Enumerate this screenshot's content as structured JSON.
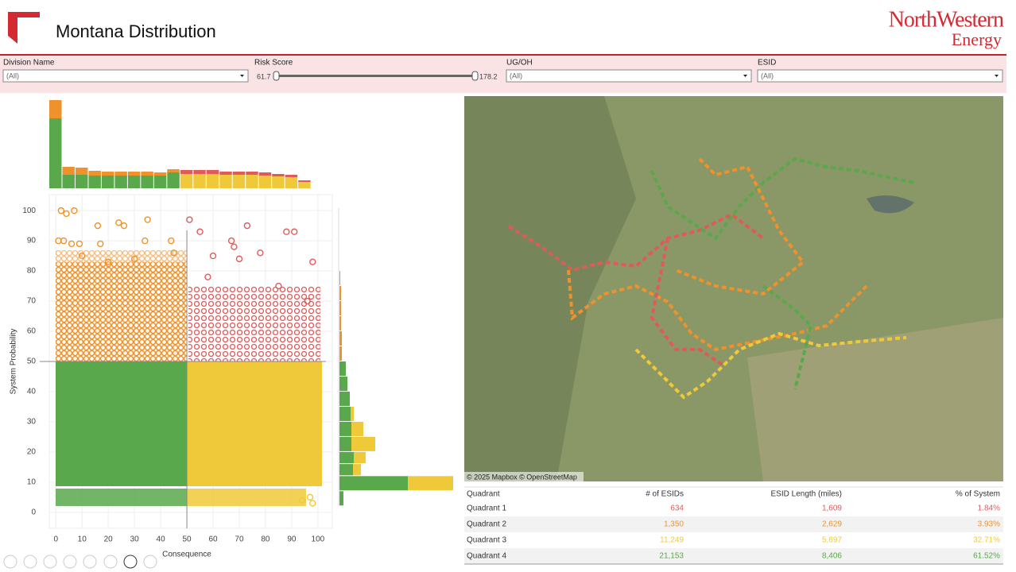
{
  "header": {
    "title": "Montana Distribution",
    "logo": [
      "NorthWestern",
      "Energy"
    ]
  },
  "filters": {
    "division": {
      "label": "Division Name",
      "value": "(All)"
    },
    "risk": {
      "label": "Risk Score",
      "min": "61.7",
      "max": "178.2"
    },
    "ugoh": {
      "label": "UG/OH",
      "value": "(All)"
    },
    "esid": {
      "label": "ESID",
      "value": "(All)"
    }
  },
  "chart_data": {
    "type": "scatter",
    "xlabel": "Consequence",
    "ylabel": "System Probability",
    "xlim": [
      -2.5,
      105.5
    ],
    "ylim": [
      -5.3,
      105.3
    ],
    "xticks": [
      0,
      10,
      20,
      30,
      40,
      50,
      60,
      70,
      80,
      90,
      100
    ],
    "yticks": [
      0,
      10,
      20,
      30,
      40,
      50,
      60,
      70,
      80,
      90,
      100
    ],
    "xline": 50,
    "yline": 50,
    "series": [
      {
        "color": "#f0922b",
        "x": [
          2,
          4,
          7,
          16,
          24,
          26,
          35,
          1,
          3,
          6,
          9,
          17,
          34,
          44,
          10,
          20,
          30,
          45
        ],
        "y": [
          100,
          99,
          100,
          95,
          96,
          95,
          97,
          90,
          90,
          89,
          89,
          89,
          90,
          90,
          85,
          83,
          84,
          86
        ]
      },
      {
        "color": "#e05a5a",
        "x": [
          51,
          55,
          73,
          88,
          91,
          67,
          68,
          78,
          98,
          70,
          60,
          96,
          85,
          58
        ],
        "y": [
          97,
          93,
          95,
          93,
          93,
          90,
          88,
          86,
          83,
          84,
          85,
          70,
          75,
          78
        ]
      },
      {
        "color": "#f0c93a",
        "x": [
          97,
          98,
          94
        ],
        "y": [
          5,
          3,
          4
        ]
      }
    ],
    "top_histogram": {
      "bins": [
        -2.5,
        2.5,
        7.5,
        12.5,
        17.5,
        22.5,
        27.5,
        32.5,
        37.5,
        42.5,
        47.5,
        52.5,
        57.5,
        62.5,
        67.5,
        72.5,
        77.5,
        82.5,
        87.5,
        92.5,
        97.5
      ],
      "series": [
        {
          "color": "#59a84b",
          "values": [
            88,
            17,
            17,
            16,
            16,
            16,
            16,
            16,
            16,
            20,
            0,
            0,
            0,
            0,
            0,
            0,
            0,
            0,
            0,
            0
          ]
        },
        {
          "color": "#f0c93a",
          "values": [
            0,
            0,
            0,
            0,
            0,
            0,
            0,
            0,
            0,
            0,
            18,
            18,
            18,
            17,
            17,
            17,
            16,
            15,
            14,
            8
          ]
        },
        {
          "color": "#f0922b",
          "values": [
            23,
            10,
            9,
            6,
            5,
            5,
            5,
            5,
            4,
            4,
            0,
            0,
            0,
            0,
            0,
            0,
            0,
            0,
            0,
            0
          ]
        },
        {
          "color": "#e05a5a",
          "values": [
            0,
            0,
            0,
            0,
            0,
            0,
            0,
            0,
            0,
            0,
            5,
            5,
            5,
            4,
            4,
            4,
            4,
            3,
            3,
            2
          ]
        }
      ]
    },
    "right_histogram": {
      "bins": [
        2,
        7,
        12,
        16,
        20,
        25,
        30,
        35,
        40,
        45,
        50,
        55,
        60,
        65,
        70,
        75,
        80
      ],
      "series": [
        {
          "color": "#59a84b",
          "values": [
            5,
            86,
            17,
            18,
            15,
            15,
            14,
            13,
            10,
            8,
            0,
            0,
            0,
            0,
            0,
            0
          ]
        },
        {
          "color": "#f0c93a",
          "values": [
            0,
            57,
            10,
            15,
            30,
            15,
            4,
            0,
            0,
            0,
            0,
            0,
            0,
            0,
            0,
            0
          ]
        },
        {
          "color": "#f0922b",
          "values": [
            0,
            0,
            0,
            0,
            0,
            0,
            0,
            0,
            0,
            0,
            3,
            3,
            2,
            2,
            2,
            1
          ]
        }
      ]
    }
  },
  "map": {
    "attribution": "© 2025 Mapbox © OpenStreetMap"
  },
  "table": {
    "columns": [
      "Quadrant",
      "# of ESIDs",
      "ESID Length (miles)",
      "% of System"
    ],
    "rows": [
      {
        "color": "#e05a5a",
        "cells": [
          "Quadrant 1",
          "634",
          "1,609",
          "1.84%"
        ]
      },
      {
        "color": "#f0922b",
        "cells": [
          "Quadrant 2",
          "1,350",
          "2,629",
          "3.93%"
        ]
      },
      {
        "color": "#f0c93a",
        "cells": [
          "Quadrant 3",
          "11,249",
          "5,697",
          "32.71%"
        ]
      },
      {
        "color": "#59a84b",
        "cells": [
          "Quadrant 4",
          "21,153",
          "8,406",
          "61.52%"
        ]
      }
    ]
  }
}
